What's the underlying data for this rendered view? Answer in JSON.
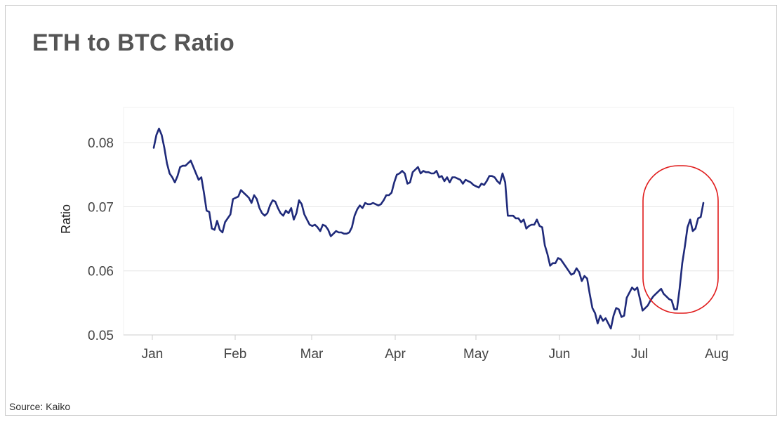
{
  "title": "ETH to BTC Ratio",
  "source": "Source: Kaiko",
  "colors": {
    "line": "#1f2a7a",
    "highlight": "#e01b1b",
    "grid": "#e6e6e6",
    "axis": "#cccccc"
  },
  "chart_data": {
    "type": "line",
    "title": "ETH to BTC Ratio",
    "ylabel": "Ratio",
    "xlabel": "",
    "ylim": [
      0.05,
      0.0855
    ],
    "y_ticks": [
      0.05,
      0.06,
      0.07,
      0.08
    ],
    "y_tick_labels": [
      "0.05",
      "0.06",
      "0.07",
      "0.08"
    ],
    "x_ticks": [
      "Jan",
      "Feb",
      "Mar",
      "Apr",
      "May",
      "Jun",
      "Jul",
      "Aug"
    ],
    "grid": true,
    "legend": "none",
    "annotations": [
      {
        "type": "ellipse",
        "from": "Jul 1",
        "to": "Jul 31",
        "y_from": 0.0522,
        "y_to": 0.0752
      }
    ],
    "series": [
      {
        "values": [
          0.0792,
          0.0812,
          0.0822,
          0.0812,
          0.0792,
          0.0768,
          0.0752,
          0.0746,
          0.0738,
          0.0748,
          0.0762,
          0.0764,
          0.0764,
          0.0768,
          0.0772,
          0.0762,
          0.0752,
          0.0742,
          0.0746,
          0.0722,
          0.0694,
          0.0692,
          0.0666,
          0.0664,
          0.0678,
          0.0664,
          0.066,
          0.0676,
          0.0682,
          0.0688,
          0.0712,
          0.0714,
          0.0716,
          0.0726,
          0.0722,
          0.0718,
          0.0714,
          0.0706,
          0.0718,
          0.0712,
          0.0698,
          0.069,
          0.0686,
          0.069,
          0.0702,
          0.071,
          0.0708,
          0.0698,
          0.069,
          0.0686,
          0.0694,
          0.069,
          0.0698,
          0.068,
          0.069,
          0.071,
          0.0704,
          0.0688,
          0.068,
          0.0672,
          0.067,
          0.0672,
          0.0668,
          0.0662,
          0.0672,
          0.067,
          0.0664,
          0.0654,
          0.0658,
          0.0662,
          0.066,
          0.066,
          0.0658,
          0.0658,
          0.066,
          0.0668,
          0.0686,
          0.0696,
          0.0702,
          0.0698,
          0.0706,
          0.0704,
          0.0704,
          0.0706,
          0.0704,
          0.0702,
          0.0704,
          0.071,
          0.0718,
          0.0718,
          0.0722,
          0.0738,
          0.075,
          0.0752,
          0.0756,
          0.0752,
          0.0736,
          0.0738,
          0.0754,
          0.0758,
          0.0762,
          0.0752,
          0.0756,
          0.0754,
          0.0754,
          0.0752,
          0.0752,
          0.0756,
          0.0746,
          0.0748,
          0.074,
          0.0746,
          0.0738,
          0.0746,
          0.0746,
          0.0744,
          0.0742,
          0.0736,
          0.0742,
          0.074,
          0.0738,
          0.0734,
          0.0732,
          0.073,
          0.0736,
          0.0734,
          0.074,
          0.0748,
          0.0748,
          0.0746,
          0.074,
          0.0736,
          0.0752,
          0.0738,
          0.0686,
          0.0686,
          0.0686,
          0.0682,
          0.0682,
          0.0676,
          0.068,
          0.0666,
          0.067,
          0.0672,
          0.0672,
          0.068,
          0.067,
          0.0668,
          0.064,
          0.0626,
          0.0608,
          0.0612,
          0.0612,
          0.062,
          0.0618,
          0.0612,
          0.0606,
          0.06,
          0.0594,
          0.0596,
          0.0604,
          0.0598,
          0.0584,
          0.0592,
          0.0588,
          0.0564,
          0.0542,
          0.0534,
          0.0518,
          0.053,
          0.0522,
          0.0526,
          0.0518,
          0.051,
          0.053,
          0.0542,
          0.054,
          0.0528,
          0.053,
          0.0558,
          0.0566,
          0.0574,
          0.057,
          0.0574,
          0.0556,
          0.0538,
          0.0542,
          0.0546,
          0.0554,
          0.056,
          0.0564,
          0.0568,
          0.0572,
          0.0564,
          0.056,
          0.0556,
          0.0554,
          0.054,
          0.054,
          0.0572,
          0.0612,
          0.0638,
          0.0668,
          0.068,
          0.0662,
          0.0666,
          0.0682,
          0.0684,
          0.0706
        ]
      }
    ]
  }
}
